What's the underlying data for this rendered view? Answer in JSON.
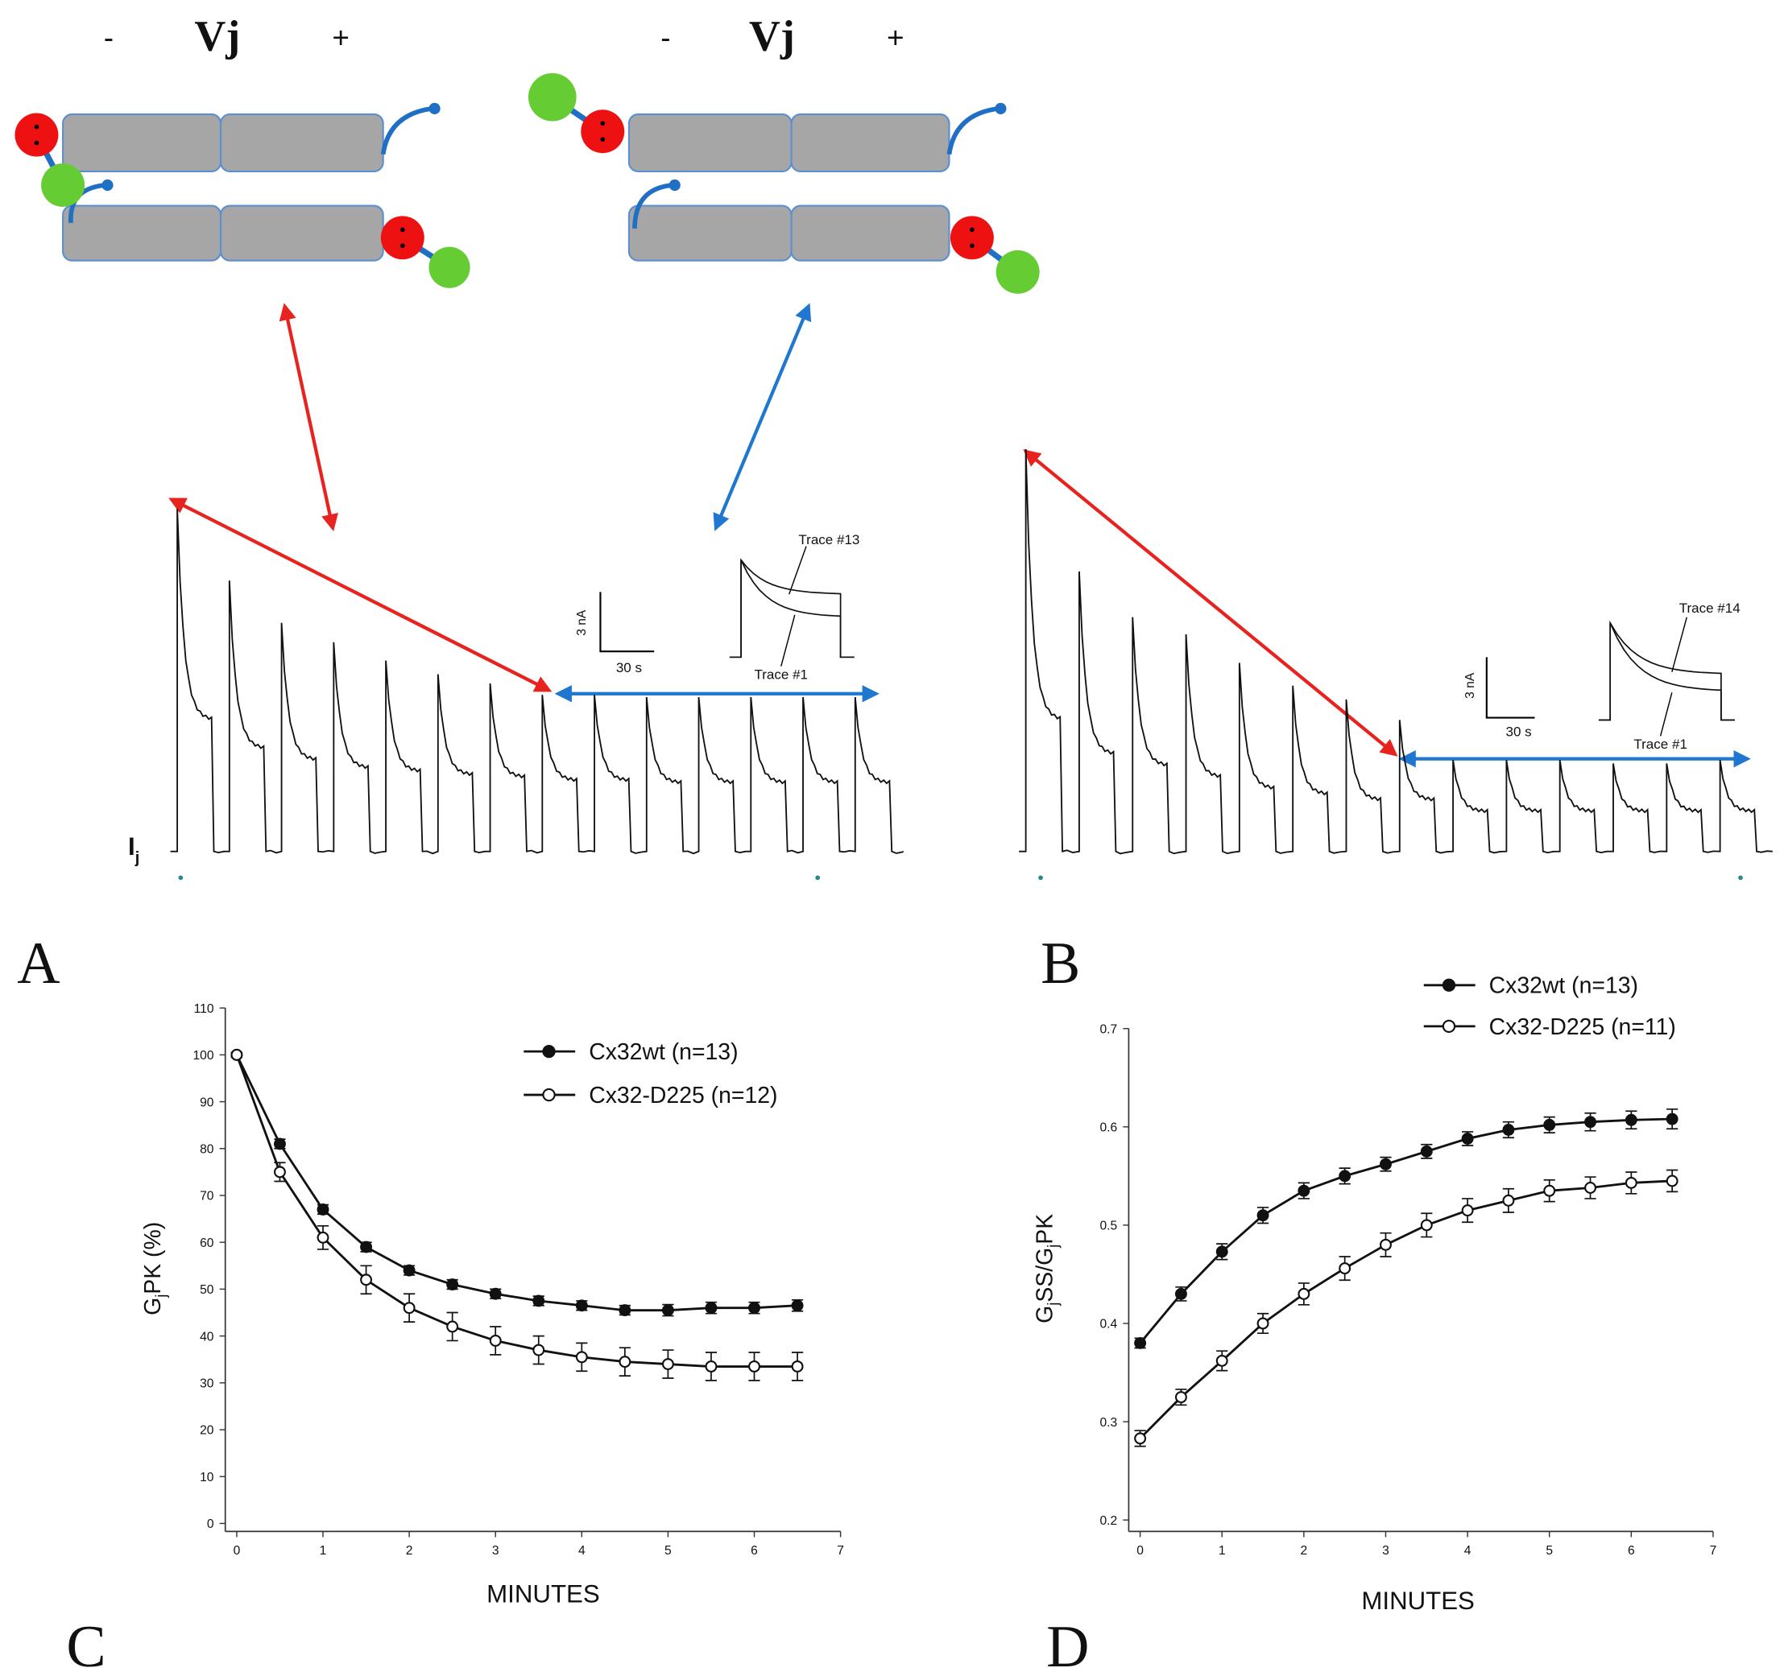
{
  "chart_data": [
    {
      "type": "line",
      "y_label": [
        "G",
        "j",
        "PK (%)"
      ],
      "x_label": "MINUTES",
      "x": [
        0,
        0.5,
        1,
        1.5,
        2,
        2.5,
        3,
        3.5,
        4,
        4.5,
        5,
        5.5,
        6,
        6.5
      ],
      "xlim": [
        0,
        7
      ],
      "xticks": [
        0,
        1,
        2,
        3,
        4,
        5,
        6,
        7
      ],
      "ylim": [
        0,
        110
      ],
      "yticks": [
        0,
        10,
        20,
        30,
        40,
        50,
        60,
        70,
        80,
        90,
        100,
        110
      ],
      "series": [
        {
          "name": "Cx32wt (n=13)",
          "color": "#111111",
          "marker_fill": "#111111",
          "values": [
            100,
            81,
            67,
            59,
            54,
            51,
            49,
            47.5,
            46.5,
            45.5,
            45.5,
            46,
            46,
            46.5
          ],
          "errors": [
            0.5,
            1,
            1,
            1,
            1,
            1,
            1,
            1,
            1,
            1,
            1.2,
            1.2,
            1.2,
            1.2
          ]
        },
        {
          "name": "Cx32-D225 (n=12)",
          "color": "#111111",
          "marker_fill": "#ffffff",
          "values": [
            100,
            75,
            61,
            52,
            46,
            42,
            39,
            37,
            35.5,
            34.5,
            34,
            33.5,
            33.5,
            33.5
          ],
          "errors": [
            0.5,
            2,
            2.5,
            3,
            3,
            3,
            3,
            3,
            3,
            3,
            3,
            3,
            3,
            3
          ]
        }
      ]
    },
    {
      "type": "line",
      "y_label": [
        "G",
        "j",
        "SS/G",
        "j",
        "PK"
      ],
      "x_label": "MINUTES",
      "x": [
        0,
        0.5,
        1,
        1.5,
        2,
        2.5,
        3,
        3.5,
        4,
        4.5,
        5,
        5.5,
        6,
        6.5
      ],
      "xlim": [
        0,
        7
      ],
      "xticks": [
        0,
        1,
        2,
        3,
        4,
        5,
        6,
        7
      ],
      "ylim": [
        0.2,
        0.7
      ],
      "yticks": [
        0.2,
        0.3,
        0.4,
        0.5,
        0.6,
        0.7
      ],
      "series": [
        {
          "name": "Cx32wt (n=13)",
          "color": "#111111",
          "marker_fill": "#111111",
          "values": [
            0.38,
            0.43,
            0.473,
            0.51,
            0.535,
            0.55,
            0.562,
            0.575,
            0.588,
            0.597,
            0.602,
            0.605,
            0.607,
            0.608
          ],
          "errors": [
            0.005,
            0.007,
            0.008,
            0.008,
            0.008,
            0.008,
            0.007,
            0.007,
            0.007,
            0.008,
            0.008,
            0.009,
            0.009,
            0.01
          ]
        },
        {
          "name": "Cx32-D225 (n=11)",
          "color": "#111111",
          "marker_fill": "#ffffff",
          "values": [
            0.283,
            0.325,
            0.362,
            0.4,
            0.43,
            0.456,
            0.48,
            0.5,
            0.515,
            0.525,
            0.535,
            0.538,
            0.543,
            0.545
          ],
          "errors": [
            0.008,
            0.008,
            0.01,
            0.01,
            0.011,
            0.012,
            0.012,
            0.012,
            0.012,
            0.012,
            0.011,
            0.011,
            0.011,
            0.011
          ]
        }
      ]
    }
  ],
  "panel_labels": [
    "A",
    "B",
    "C",
    "D"
  ],
  "schematics": [
    {
      "minus": "-",
      "vj": "Vj",
      "plus": "+"
    },
    {
      "minus": "-",
      "vj": "Vj",
      "plus": "+"
    }
  ],
  "traces": [
    {
      "current_label": [
        "I",
        "j"
      ],
      "upper_trace": "Trace #13",
      "lower_trace": "Trace #1",
      "scale_y": "3 nA",
      "scale_x": "30 s"
    },
    {
      "upper_trace": "Trace #14",
      "lower_trace": "Trace #1",
      "scale_y": "3 nA",
      "scale_x": "30 s"
    }
  ]
}
